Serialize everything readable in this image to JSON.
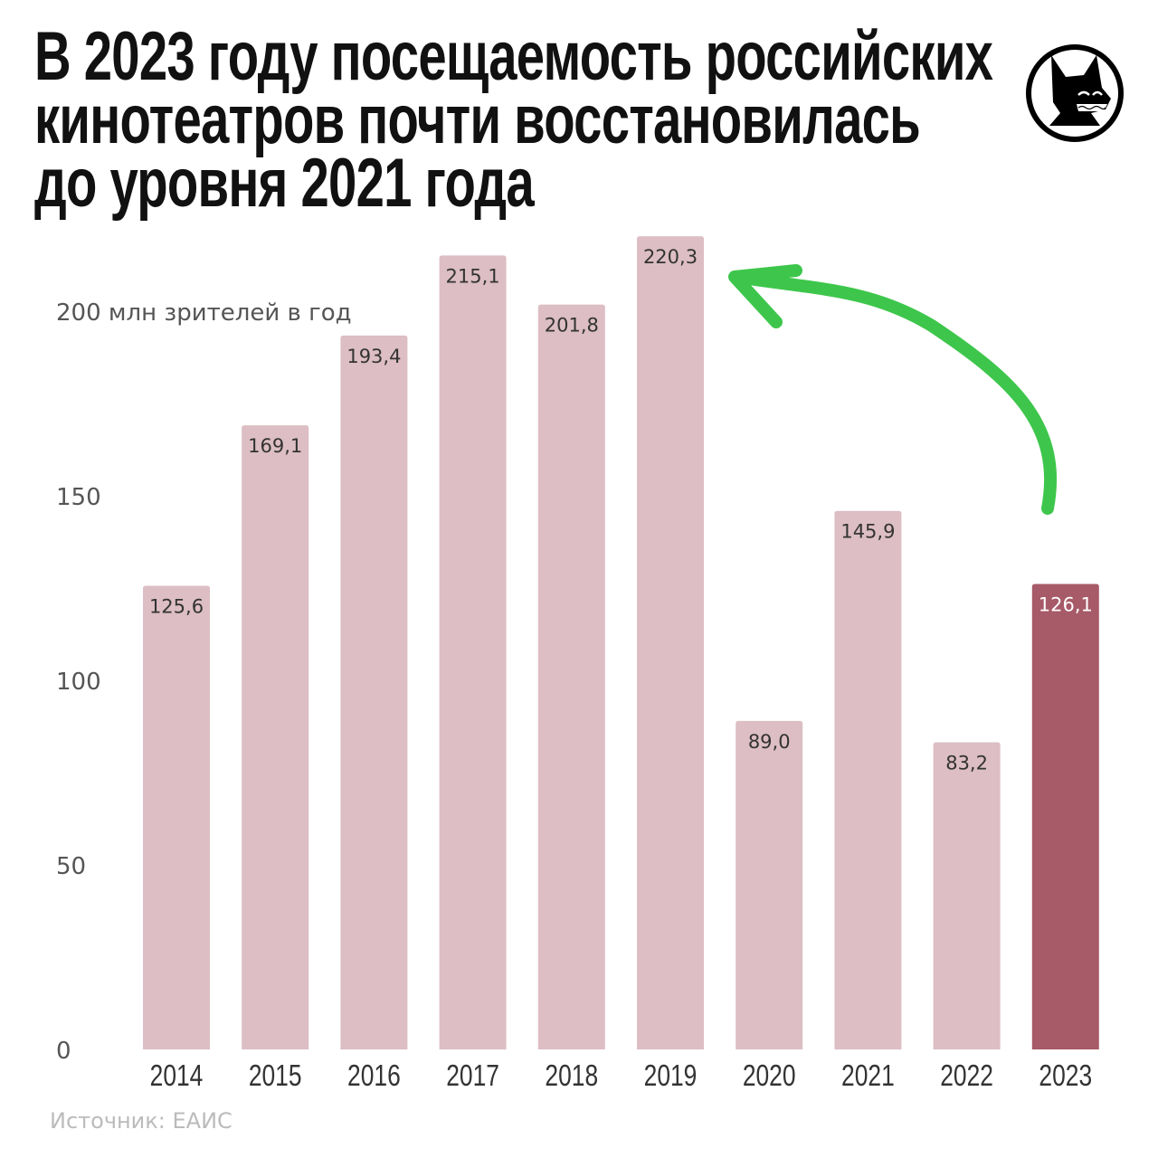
{
  "title_lines": [
    "В 2023 году посещаемость российских",
    "кинотеатров почти восстановилась",
    "до уровня 2021 года"
  ],
  "source": "Источник: ЕАИС",
  "colors": {
    "bar": "#dcbec4",
    "highlight": "#a75a68",
    "arrow": "#3dc64b"
  },
  "chart_data": {
    "type": "bar",
    "title": "В 2023 году посещаемость российских кинотеатров почти восстановилась до уровня 2021 года",
    "ylabel": "млн зрителей в год",
    "y_tick_labels": [
      "0",
      "50",
      "100",
      "150",
      "200 млн зрителей в год"
    ],
    "y_ticks": [
      0,
      50,
      100,
      150,
      200
    ],
    "ylim": [
      0,
      225
    ],
    "grid": false,
    "categories": [
      "2014",
      "2015",
      "2016",
      "2017",
      "2018",
      "2019",
      "2020",
      "2021",
      "2022",
      "2023"
    ],
    "values": [
      125.6,
      169.1,
      193.4,
      215.1,
      201.8,
      220.3,
      89.0,
      145.9,
      83.2,
      126.1
    ],
    "value_labels": [
      "125,6",
      "169,1",
      "193,4",
      "215,1",
      "201,8",
      "220,3",
      "89,0",
      "145,9",
      "83,2",
      "126,1"
    ],
    "highlight_index": 9,
    "annotation": "green arrow from 2023 bar to 2019 bar"
  }
}
